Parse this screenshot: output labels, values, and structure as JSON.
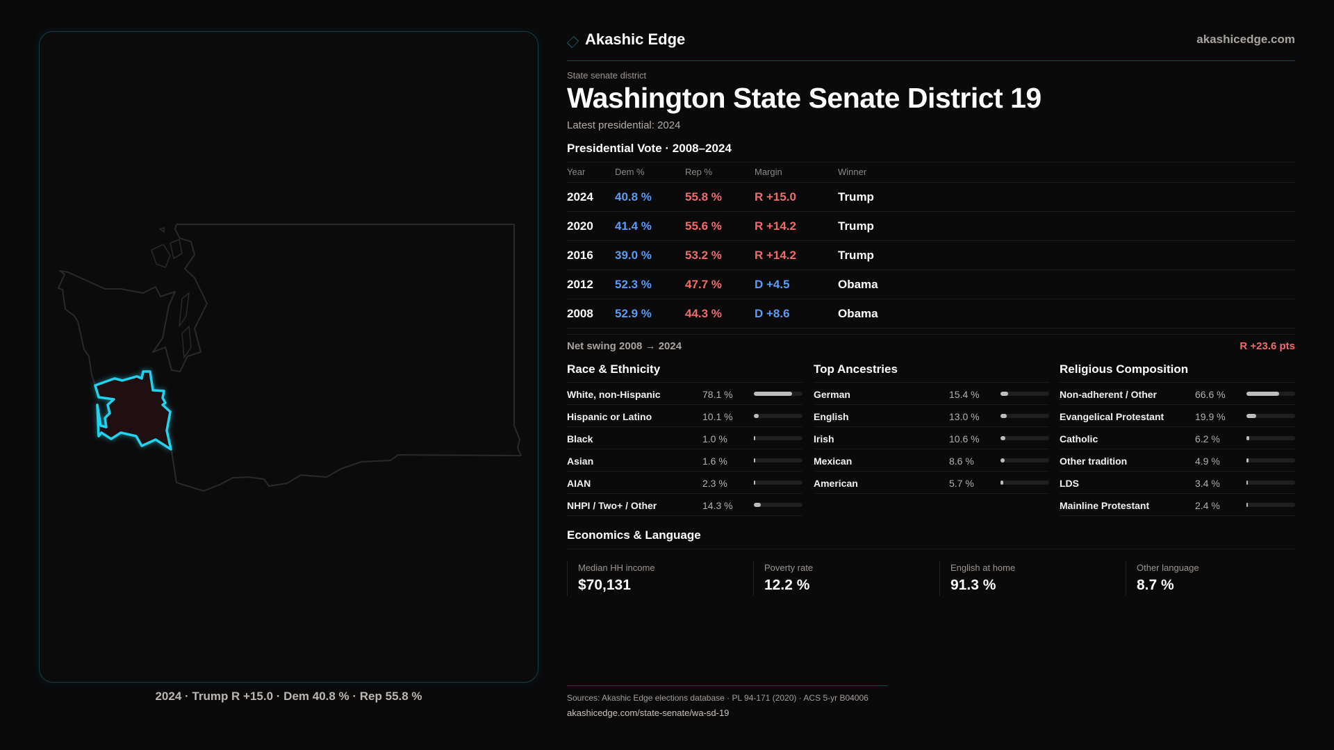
{
  "brand": {
    "name": "Akashic Edge",
    "site": "akashicedge.com",
    "accent": "#22d3ee"
  },
  "kicker": "State senate district",
  "title": "Washington State Senate District 19",
  "latest": "Latest presidential: 2024",
  "map": {
    "caption": "2024 · Trump R +15.0 · Dem 40.8 % · Rep 55.8 %",
    "state": "Washington",
    "highlight_color": "#22d3ee"
  },
  "presidential": {
    "heading": "Presidential Vote · 2008–2024",
    "columns": [
      "Year",
      "Dem %",
      "Rep %",
      "Margin",
      "Winner"
    ],
    "rows": [
      {
        "year": "2024",
        "dem": "40.8 %",
        "rep": "55.8 %",
        "margin": "R +15.0",
        "party": "R",
        "winner": "Trump"
      },
      {
        "year": "2020",
        "dem": "41.4 %",
        "rep": "55.6 %",
        "margin": "R +14.2",
        "party": "R",
        "winner": "Trump"
      },
      {
        "year": "2016",
        "dem": "39.0 %",
        "rep": "53.2 %",
        "margin": "R +14.2",
        "party": "R",
        "winner": "Trump"
      },
      {
        "year": "2012",
        "dem": "52.3 %",
        "rep": "47.7 %",
        "margin": "D +4.5",
        "party": "D",
        "winner": "Obama"
      },
      {
        "year": "2008",
        "dem": "52.9 %",
        "rep": "44.3 %",
        "margin": "D +8.6",
        "party": "D",
        "winner": "Obama"
      }
    ],
    "net_swing_label": "Net swing 2008 → 2024",
    "net_swing_value": "R +23.6 pts"
  },
  "demographics": [
    {
      "heading": "Race & Ethnicity",
      "items": [
        {
          "label": "White, non-Hispanic",
          "value": "78.1 %",
          "pct": 78.1
        },
        {
          "label": "Hispanic or Latino",
          "value": "10.1 %",
          "pct": 10.1
        },
        {
          "label": "Black",
          "value": "1.0 %",
          "pct": 1.0
        },
        {
          "label": "Asian",
          "value": "1.6 %",
          "pct": 1.6
        },
        {
          "label": "AIAN",
          "value": "2.3 %",
          "pct": 2.3
        },
        {
          "label": "NHPI / Two+ / Other",
          "value": "14.3 %",
          "pct": 14.3
        }
      ]
    },
    {
      "heading": "Top Ancestries",
      "items": [
        {
          "label": "German",
          "value": "15.4 %",
          "pct": 15.4
        },
        {
          "label": "English",
          "value": "13.0 %",
          "pct": 13.0
        },
        {
          "label": "Irish",
          "value": "10.6 %",
          "pct": 10.6
        },
        {
          "label": "Mexican",
          "value": "8.6 %",
          "pct": 8.6
        },
        {
          "label": "American",
          "value": "5.7 %",
          "pct": 5.7
        }
      ]
    },
    {
      "heading": "Religious Composition",
      "items": [
        {
          "label": "Non-adherent / Other",
          "value": "66.6 %",
          "pct": 66.6
        },
        {
          "label": "Evangelical Protestant",
          "value": "19.9 %",
          "pct": 19.9
        },
        {
          "label": "Catholic",
          "value": "6.2 %",
          "pct": 6.2
        },
        {
          "label": "Other tradition",
          "value": "4.9 %",
          "pct": 4.9
        },
        {
          "label": "LDS",
          "value": "3.4 %",
          "pct": 3.4
        },
        {
          "label": "Mainline Protestant",
          "value": "2.4 %",
          "pct": 2.4
        }
      ]
    }
  ],
  "economics": {
    "heading": "Economics & Language",
    "cards": [
      {
        "label": "Median HH income",
        "value": "$70,131"
      },
      {
        "label": "Poverty rate",
        "value": "12.2 %"
      },
      {
        "label": "English at home",
        "value": "91.3 %"
      },
      {
        "label": "Other language",
        "value": "8.7 %"
      }
    ]
  },
  "footer": {
    "sources": "Sources: Akashic Edge elections database · PL 94-171 (2020) · ACS 5-yr B04006",
    "url": "akashicedge.com/state-senate/wa-sd-19"
  }
}
